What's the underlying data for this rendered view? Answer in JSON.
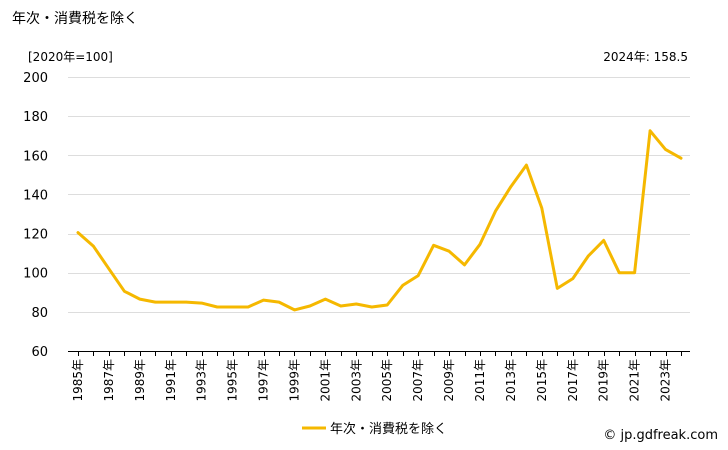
{
  "title": "年次・消費税を除く",
  "unit_label": "[2020年=100]",
  "latest_note": "2024年: 158.5",
  "copyright": "© jp.gdfreak.com",
  "colors": {
    "series": "#f5b800",
    "grid": "#dddddd",
    "axis": "#000000"
  },
  "chart_data": {
    "type": "line",
    "title": "年次・消費税を除く",
    "xlabel": "",
    "ylabel": "[2020年=100]",
    "ylim": [
      60,
      200
    ],
    "yticks": [
      60,
      80,
      100,
      120,
      140,
      160,
      180,
      200
    ],
    "grid": true,
    "legend_position": "bottom",
    "x": [
      1985,
      1986,
      1987,
      1988,
      1989,
      1990,
      1991,
      1992,
      1993,
      1994,
      1995,
      1996,
      1997,
      1998,
      1999,
      2000,
      2001,
      2002,
      2003,
      2004,
      2005,
      2006,
      2007,
      2008,
      2009,
      2010,
      2011,
      2012,
      2013,
      2014,
      2015,
      2016,
      2017,
      2018,
      2019,
      2020,
      2021,
      2022,
      2023,
      2024
    ],
    "x_tick_labels": [
      "1985年",
      "1987年",
      "1989年",
      "1991年",
      "1993年",
      "1995年",
      "1997年",
      "1999年",
      "2001年",
      "2003年",
      "2005年",
      "2007年",
      "2009年",
      "2011年",
      "2013年",
      "2015年",
      "2017年",
      "2019年",
      "2021年",
      "2023年"
    ],
    "series": [
      {
        "name": "年次・消費税を除く",
        "color": "#f5b800",
        "values": [
          120.5,
          113.5,
          102.0,
          90.5,
          86.5,
          85.0,
          85.0,
          85.0,
          84.5,
          82.5,
          82.5,
          82.5,
          86.0,
          85.0,
          81.0,
          83.0,
          86.5,
          83.0,
          84.0,
          82.5,
          83.5,
          93.5,
          98.5,
          114.0,
          111.0,
          104.0,
          114.5,
          131.5,
          144.0,
          155.0,
          133.0,
          92.0,
          97.0,
          108.5,
          116.5,
          100.0,
          100.0,
          172.5,
          163.0,
          158.5
        ]
      }
    ]
  }
}
